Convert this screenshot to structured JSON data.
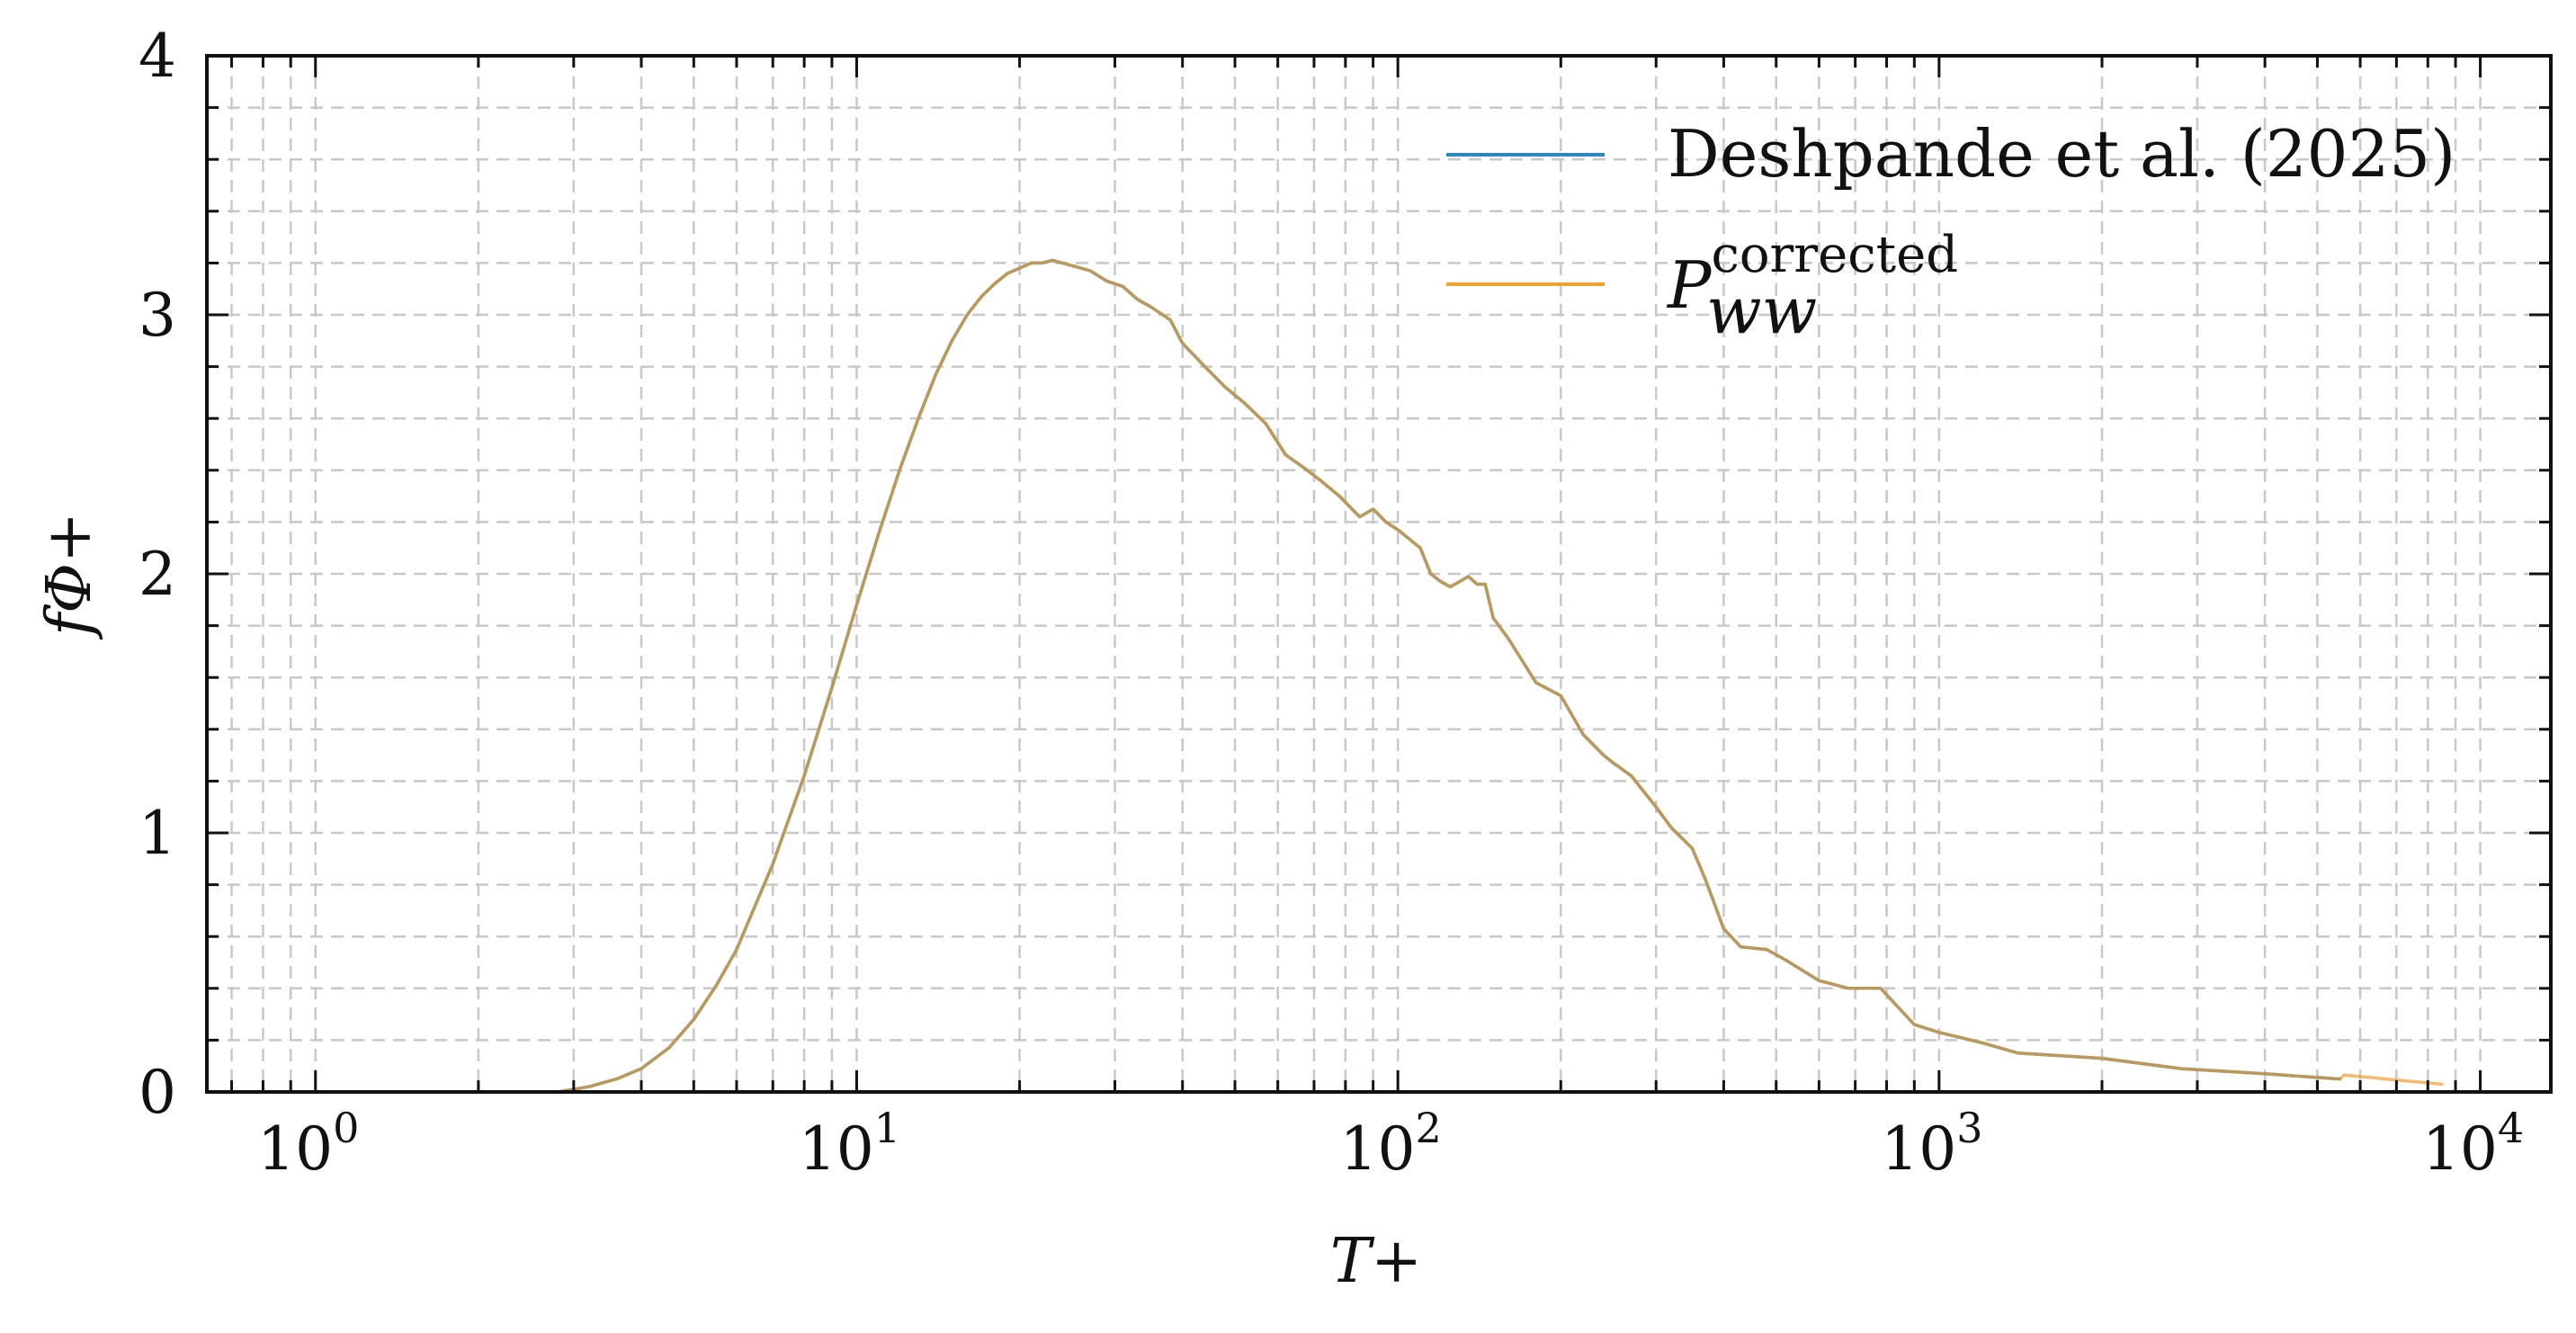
{
  "chart_data": {
    "type": "line",
    "xscale": "log",
    "xlim": [
      0.63,
      13500
    ],
    "ylim": [
      0,
      4
    ],
    "xlabel": "T+",
    "ylabel": "fΦ+",
    "grid": "major and minor, dashed",
    "legend_position": "top-right",
    "x_tick_labels": [
      {
        "base": "10",
        "exp": "0",
        "value": 1
      },
      {
        "base": "10",
        "exp": "1",
        "value": 10
      },
      {
        "base": "10",
        "exp": "2",
        "value": 100
      },
      {
        "base": "10",
        "exp": "3",
        "value": 1000
      },
      {
        "base": "10",
        "exp": "4",
        "value": 10000
      }
    ],
    "y_ticks": [
      0,
      1,
      2,
      3,
      4
    ],
    "series": [
      {
        "name": "Deshpande et al. (2025)",
        "color": "#2f86c1",
        "x": [
          0.63,
          1,
          2,
          2.8,
          3.2,
          3.6,
          4,
          4.5,
          5,
          5.5,
          6,
          7,
          8,
          9,
          10,
          11,
          12,
          13,
          14,
          15,
          16,
          17,
          18,
          19,
          20,
          21,
          22,
          23,
          24,
          25,
          27,
          29,
          31,
          33,
          35,
          38,
          40,
          44,
          48,
          52,
          57,
          62,
          67,
          72,
          78,
          85,
          90,
          95,
          100,
          110,
          115,
          120,
          125,
          130,
          135,
          140,
          145,
          150,
          160,
          180,
          200,
          220,
          240,
          250,
          270,
          300,
          320,
          350,
          370,
          400,
          430,
          480,
          520,
          600,
          680,
          780,
          900,
          1000,
          1200,
          1400,
          2000,
          2800,
          4000,
          5500
        ],
        "y": [
          0.0,
          0.0,
          0.0,
          0.0,
          0.02,
          0.05,
          0.09,
          0.17,
          0.28,
          0.41,
          0.55,
          0.88,
          1.22,
          1.56,
          1.88,
          2.16,
          2.4,
          2.6,
          2.77,
          2.9,
          3.0,
          3.07,
          3.12,
          3.16,
          3.18,
          3.2,
          3.2,
          3.21,
          3.2,
          3.19,
          3.17,
          3.13,
          3.11,
          3.06,
          3.03,
          2.98,
          2.89,
          2.8,
          2.72,
          2.66,
          2.58,
          2.46,
          2.41,
          2.36,
          2.3,
          2.22,
          2.25,
          2.2,
          2.17,
          2.1,
          2.0,
          1.97,
          1.95,
          1.97,
          1.99,
          1.96,
          1.96,
          1.83,
          1.75,
          1.58,
          1.53,
          1.38,
          1.3,
          1.27,
          1.22,
          1.1,
          1.02,
          0.94,
          0.82,
          0.63,
          0.56,
          0.55,
          0.51,
          0.43,
          0.4,
          0.4,
          0.26,
          0.23,
          0.19,
          0.15,
          0.13,
          0.09,
          0.07,
          0.05
        ]
      },
      {
        "name": "P_ww^corrected",
        "color": "#f0a133",
        "x": [
          0.63,
          1,
          2,
          2.8,
          3.2,
          3.6,
          4,
          4.5,
          5,
          5.5,
          6,
          7,
          8,
          9,
          10,
          11,
          12,
          13,
          14,
          15,
          16,
          17,
          18,
          19,
          20,
          21,
          22,
          23,
          24,
          25,
          27,
          29,
          31,
          33,
          35,
          38,
          40,
          44,
          48,
          52,
          57,
          62,
          67,
          72,
          78,
          85,
          90,
          95,
          100,
          110,
          115,
          120,
          125,
          130,
          135,
          140,
          145,
          150,
          160,
          180,
          200,
          220,
          240,
          250,
          270,
          300,
          320,
          350,
          370,
          400,
          430,
          480,
          520,
          600,
          680,
          780,
          900,
          1000,
          1200,
          1400,
          2000,
          2800,
          4000,
          5500,
          5600,
          8500
        ],
        "y": [
          0.0,
          0.0,
          0.0,
          0.0,
          0.02,
          0.05,
          0.09,
          0.17,
          0.28,
          0.41,
          0.55,
          0.88,
          1.22,
          1.56,
          1.88,
          2.16,
          2.4,
          2.6,
          2.77,
          2.9,
          3.0,
          3.07,
          3.12,
          3.16,
          3.18,
          3.2,
          3.2,
          3.21,
          3.2,
          3.19,
          3.17,
          3.13,
          3.11,
          3.06,
          3.03,
          2.98,
          2.89,
          2.8,
          2.72,
          2.66,
          2.58,
          2.46,
          2.41,
          2.36,
          2.3,
          2.22,
          2.25,
          2.2,
          2.17,
          2.1,
          2.0,
          1.97,
          1.95,
          1.97,
          1.99,
          1.96,
          1.96,
          1.83,
          1.75,
          1.58,
          1.53,
          1.38,
          1.3,
          1.27,
          1.22,
          1.1,
          1.02,
          0.94,
          0.82,
          0.63,
          0.56,
          0.55,
          0.51,
          0.43,
          0.4,
          0.4,
          0.26,
          0.23,
          0.19,
          0.15,
          0.13,
          0.09,
          0.07,
          0.05,
          0.065,
          0.03
        ]
      }
    ]
  },
  "legend": {
    "items": [
      {
        "label": "Deshpande et al. (2025)"
      },
      {
        "label_main": "P",
        "label_sub": "ww",
        "label_sup": "corrected"
      }
    ]
  }
}
